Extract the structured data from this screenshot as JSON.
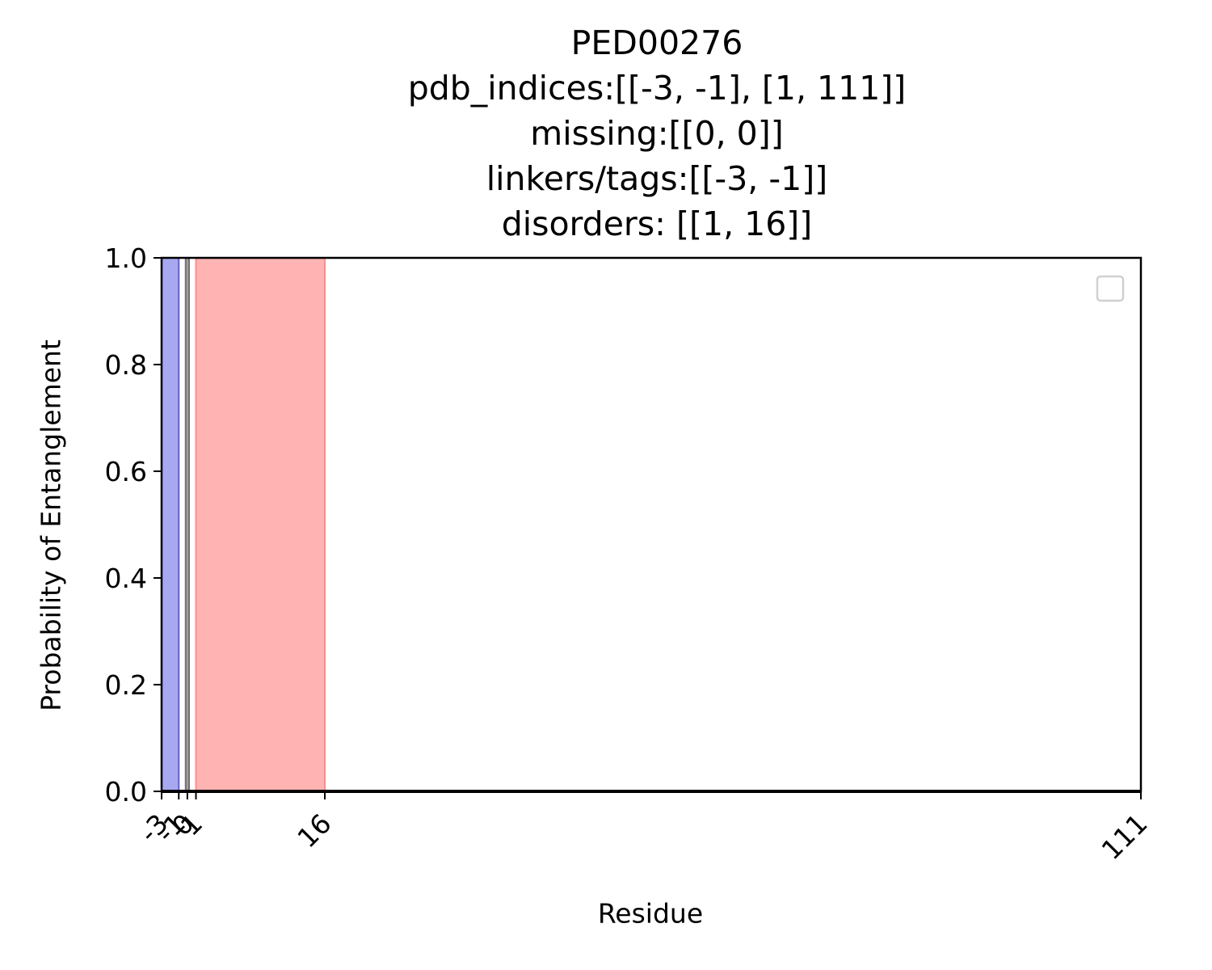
{
  "chart_data": {
    "type": "area",
    "title_lines": [
      "PED00276",
      "pdb_indices:[[-3, -1], [1, 111]]",
      "missing:[[0, 0]]",
      "linkers/tags:[[-3, -1]]",
      "disorders: [[1, 16]]"
    ],
    "xlabel": "Residue",
    "ylabel": "Probability of Entanglement",
    "xlim": [
      -3,
      111
    ],
    "ylim": [
      0,
      1.0
    ],
    "x_ticks": [
      -3,
      -1,
      0,
      1,
      16,
      111
    ],
    "x_tick_labels": [
      "-3",
      "-1",
      "0",
      "1",
      "16",
      "111"
    ],
    "y_ticks": [
      0.0,
      0.2,
      0.4,
      0.6,
      0.8,
      1.0
    ],
    "y_tick_labels": [
      "0.0",
      "0.2",
      "0.4",
      "0.6",
      "0.8",
      "1.0"
    ],
    "shaded_regions": [
      {
        "start": -3,
        "end": -1,
        "color": "#a8a8f0",
        "edge": "#6060d8"
      },
      {
        "start": -0.2,
        "end": 0.2,
        "color": "#a0a0a0",
        "edge": "#707070"
      },
      {
        "start": 1,
        "end": 16,
        "color": "#ffb3b3",
        "edge": "#ff8c8c"
      }
    ],
    "series": [
      {
        "x": [
          -3,
          111
        ],
        "values": [
          0.0,
          0.0
        ],
        "color": "#000000"
      }
    ],
    "legend": {
      "location": "top-right",
      "entries": []
    },
    "grid": false
  }
}
